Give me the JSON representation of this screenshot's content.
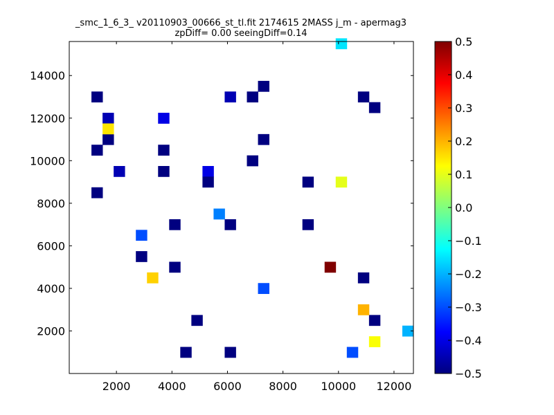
{
  "chart_data": {
    "type": "heatmap",
    "title": "_smc_1_6_3_ v20110903_00666_st_tl.fit 2174615 2MASS j_m - apermag3",
    "subtitle": "zpDiff= 0.00 seeingDiff=0.14",
    "xlabel": "",
    "ylabel": "",
    "xlim": [
      300,
      12700
    ],
    "ylim": [
      0,
      15600
    ],
    "xticks": [
      2000,
      4000,
      6000,
      8000,
      10000,
      12000
    ],
    "yticks": [
      2000,
      4000,
      6000,
      8000,
      10000,
      12000,
      14000
    ],
    "x_labels": [
      "2000",
      "4000",
      "6000",
      "8000",
      "10000",
      "12000"
    ],
    "y_labels": [
      "2000",
      "4000",
      "6000",
      "8000",
      "10000",
      "12000",
      "14000"
    ],
    "grid": false,
    "bin_width": 400,
    "bin_height": 500,
    "colormap": "jet",
    "vmin": -0.5,
    "vmax": 0.5,
    "colorbar_ticks": [
      0.5,
      0.4,
      0.3,
      0.2,
      0.1,
      0.0,
      -0.1,
      -0.2,
      -0.3,
      -0.4,
      -0.5
    ],
    "colorbar_labels": [
      "0.5",
      "0.4",
      "0.3",
      "0.2",
      "0.1",
      "0.0",
      "−0.1",
      "−0.2",
      "−0.3",
      "−0.4",
      "−0.5"
    ],
    "cells": [
      {
        "x": 1300,
        "y": 13000,
        "v": -0.5
      },
      {
        "x": 1300,
        "y": 10500,
        "v": -0.5
      },
      {
        "x": 1300,
        "y": 8500,
        "v": -0.5
      },
      {
        "x": 1700,
        "y": 12000,
        "v": -0.45
      },
      {
        "x": 1700,
        "y": 11000,
        "v": -0.5
      },
      {
        "x": 2100,
        "y": 9500,
        "v": -0.45
      },
      {
        "x": 2900,
        "y": 6500,
        "v": -0.3
      },
      {
        "x": 2900,
        "y": 5500,
        "v": -0.5
      },
      {
        "x": 3700,
        "y": 12000,
        "v": -0.4
      },
      {
        "x": 3700,
        "y": 10500,
        "v": -0.5
      },
      {
        "x": 3700,
        "y": 9500,
        "v": -0.5
      },
      {
        "x": 4100,
        "y": 7000,
        "v": -0.5
      },
      {
        "x": 4100,
        "y": 5000,
        "v": -0.5
      },
      {
        "x": 4500,
        "y": 1000,
        "v": -0.5
      },
      {
        "x": 4900,
        "y": 2500,
        "v": -0.5
      },
      {
        "x": 5300,
        "y": 9500,
        "v": -0.4
      },
      {
        "x": 5300,
        "y": 9000,
        "v": -0.5
      },
      {
        "x": 5700,
        "y": 7500,
        "v": -0.25
      },
      {
        "x": 6100,
        "y": 13000,
        "v": -0.45
      },
      {
        "x": 6100,
        "y": 7000,
        "v": -0.5
      },
      {
        "x": 6100,
        "y": 1000,
        "v": -0.5
      },
      {
        "x": 6900,
        "y": 13000,
        "v": -0.5
      },
      {
        "x": 6900,
        "y": 10000,
        "v": -0.5
      },
      {
        "x": 7300,
        "y": 13500,
        "v": -0.5
      },
      {
        "x": 7300,
        "y": 11000,
        "v": -0.5
      },
      {
        "x": 7300,
        "y": 4000,
        "v": -0.3
      },
      {
        "x": 8900,
        "y": 9000,
        "v": -0.5
      },
      {
        "x": 8900,
        "y": 7000,
        "v": -0.5
      },
      {
        "x": 10500,
        "y": 1000,
        "v": -0.3
      },
      {
        "x": 10900,
        "y": 4500,
        "v": -0.5
      },
      {
        "x": 10900,
        "y": 13000,
        "v": -0.5
      },
      {
        "x": 11300,
        "y": 12500,
        "v": -0.5
      },
      {
        "x": 11300,
        "y": 2500,
        "v": -0.5
      },
      {
        "x": 9700,
        "y": 5000,
        "v": 0.5
      },
      {
        "x": 3300,
        "y": 4500,
        "v": 0.17
      },
      {
        "x": 1700,
        "y": 11500,
        "v": 0.15
      },
      {
        "x": 10900,
        "y": 3000,
        "v": 0.2
      },
      {
        "x": 11300,
        "y": 1500,
        "v": 0.12
      },
      {
        "x": 10100,
        "y": 9000,
        "v": 0.1
      },
      {
        "x": 10100,
        "y": 15500,
        "v": -0.15
      },
      {
        "x": 12500,
        "y": 2000,
        "v": -0.2
      }
    ]
  }
}
